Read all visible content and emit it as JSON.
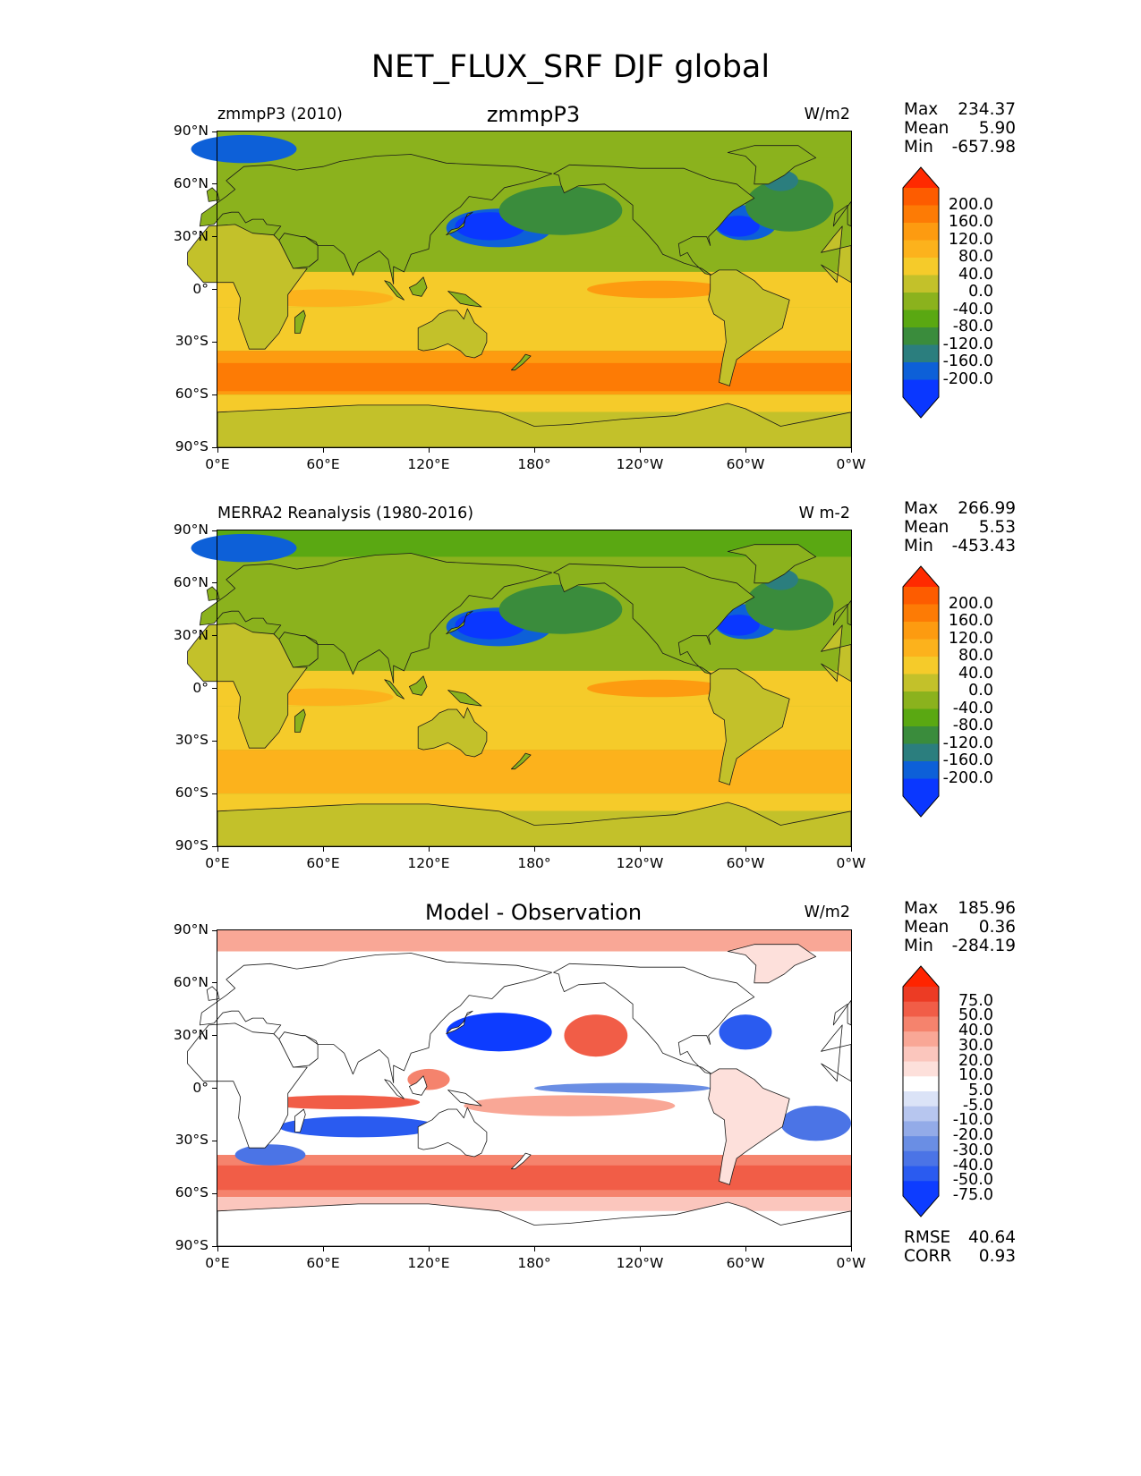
{
  "figure": {
    "title": "NET_FLUX_SRF DJF global"
  },
  "lon_ticks": [
    "0°E",
    "60°E",
    "120°E",
    "180°",
    "120°W",
    "60°W",
    "0°W"
  ],
  "lat_ticks": [
    "90°N",
    "60°N",
    "30°N",
    "0°",
    "30°S",
    "60°S",
    "90°S"
  ],
  "colors": {
    "abs_levels": [
      "#0a37ff",
      "#0d60d8",
      "#2b7e7e",
      "#3a8c3c",
      "#5aa812",
      "#8bb21d",
      "#c3c12a",
      "#f5cb2a",
      "#fcb21c",
      "#fd9b10",
      "#fd7b05",
      "#fd5c00"
    ],
    "abs_over": "#ff2a00",
    "diff_levels": [
      "#0d3cff",
      "#2a5bf0",
      "#4b74e6",
      "#6a8ee4",
      "#93abe8",
      "#b7c6ef",
      "#dbe3f7",
      "#ffffff",
      "#fde0db",
      "#fbc6bd",
      "#f9a796",
      "#f5836d",
      "#f15d47",
      "#ec3b24"
    ],
    "diff_over": "#ff2400"
  },
  "panels": [
    {
      "id": "test",
      "left_label": "zmmpP3 (2010)",
      "center_title": "zmmpP3",
      "units": "W/m2",
      "stats": [
        {
          "key": "Max",
          "value": "234.37"
        },
        {
          "key": "Mean",
          "value": "5.90"
        },
        {
          "key": "Min",
          "value": "-657.98"
        }
      ],
      "colorbar_labels": [
        "200.0",
        "160.0",
        "120.0",
        "80.0",
        "40.0",
        "0.0",
        "-40.0",
        "-80.0",
        "-120.0",
        "-160.0",
        "-200.0"
      ]
    },
    {
      "id": "reference",
      "left_label": "MERRA2 Reanalysis (1980-2016)",
      "center_title": "",
      "units": "W m-2",
      "stats": [
        {
          "key": "Max",
          "value": "266.99"
        },
        {
          "key": "Mean",
          "value": "5.53"
        },
        {
          "key": "Min",
          "value": "-453.43"
        }
      ],
      "colorbar_labels": [
        "200.0",
        "160.0",
        "120.0",
        "80.0",
        "40.0",
        "0.0",
        "-40.0",
        "-80.0",
        "-120.0",
        "-160.0",
        "-200.0"
      ]
    },
    {
      "id": "difference",
      "left_label": "",
      "center_title": "Model - Observation",
      "units": "W/m2",
      "stats": [
        {
          "key": "Max",
          "value": "185.96"
        },
        {
          "key": "Mean",
          "value": "0.36"
        },
        {
          "key": "Min",
          "value": "-284.19"
        }
      ],
      "colorbar_labels": [
        "75.0",
        "50.0",
        "40.0",
        "30.0",
        "20.0",
        "10.0",
        "5.0",
        "-5.0",
        "-10.0",
        "-20.0",
        "-30.0",
        "-40.0",
        "-50.0",
        "-75.0"
      ],
      "extra_stats": [
        {
          "key": "RMSE",
          "value": "40.64"
        },
        {
          "key": "CORR",
          "value": "0.93"
        }
      ]
    }
  ],
  "chart_data": [
    {
      "type": "heatmap",
      "title": "zmmpP3",
      "variable": "NET_FLUX_SRF",
      "season": "DJF",
      "units": "W/m2",
      "levels": [
        -200,
        -160,
        -120,
        -80,
        -40,
        0,
        40,
        80,
        120,
        160,
        200
      ],
      "xlim": [
        0,
        360
      ],
      "ylim": [
        -90,
        90
      ],
      "xticks": [
        0,
        60,
        120,
        180,
        240,
        300,
        360
      ],
      "yticks": [
        90,
        60,
        30,
        0,
        -30,
        -60,
        -90
      ],
      "stats": {
        "max": 234.37,
        "mean": 5.9,
        "min": -657.98
      }
    },
    {
      "type": "heatmap",
      "title": "MERRA2 Reanalysis (1980-2016)",
      "variable": "NET_FLUX_SRF",
      "season": "DJF",
      "units": "W m-2",
      "levels": [
        -200,
        -160,
        -120,
        -80,
        -40,
        0,
        40,
        80,
        120,
        160,
        200
      ],
      "xlim": [
        0,
        360
      ],
      "ylim": [
        -90,
        90
      ],
      "xticks": [
        0,
        60,
        120,
        180,
        240,
        300,
        360
      ],
      "yticks": [
        90,
        60,
        30,
        0,
        -30,
        -60,
        -90
      ],
      "stats": {
        "max": 266.99,
        "mean": 5.53,
        "min": -453.43
      }
    },
    {
      "type": "heatmap",
      "title": "Model - Observation",
      "variable": "NET_FLUX_SRF",
      "season": "DJF",
      "units": "W/m2",
      "levels": [
        -75,
        -50,
        -40,
        -30,
        -20,
        -10,
        -5,
        5,
        10,
        20,
        30,
        40,
        50,
        75
      ],
      "xlim": [
        0,
        360
      ],
      "ylim": [
        -90,
        90
      ],
      "xticks": [
        0,
        60,
        120,
        180,
        240,
        300,
        360
      ],
      "yticks": [
        90,
        60,
        30,
        0,
        -30,
        -60,
        -90
      ],
      "stats": {
        "max": 185.96,
        "mean": 0.36,
        "min": -284.19,
        "rmse": 40.64,
        "corr": 0.93
      }
    }
  ]
}
